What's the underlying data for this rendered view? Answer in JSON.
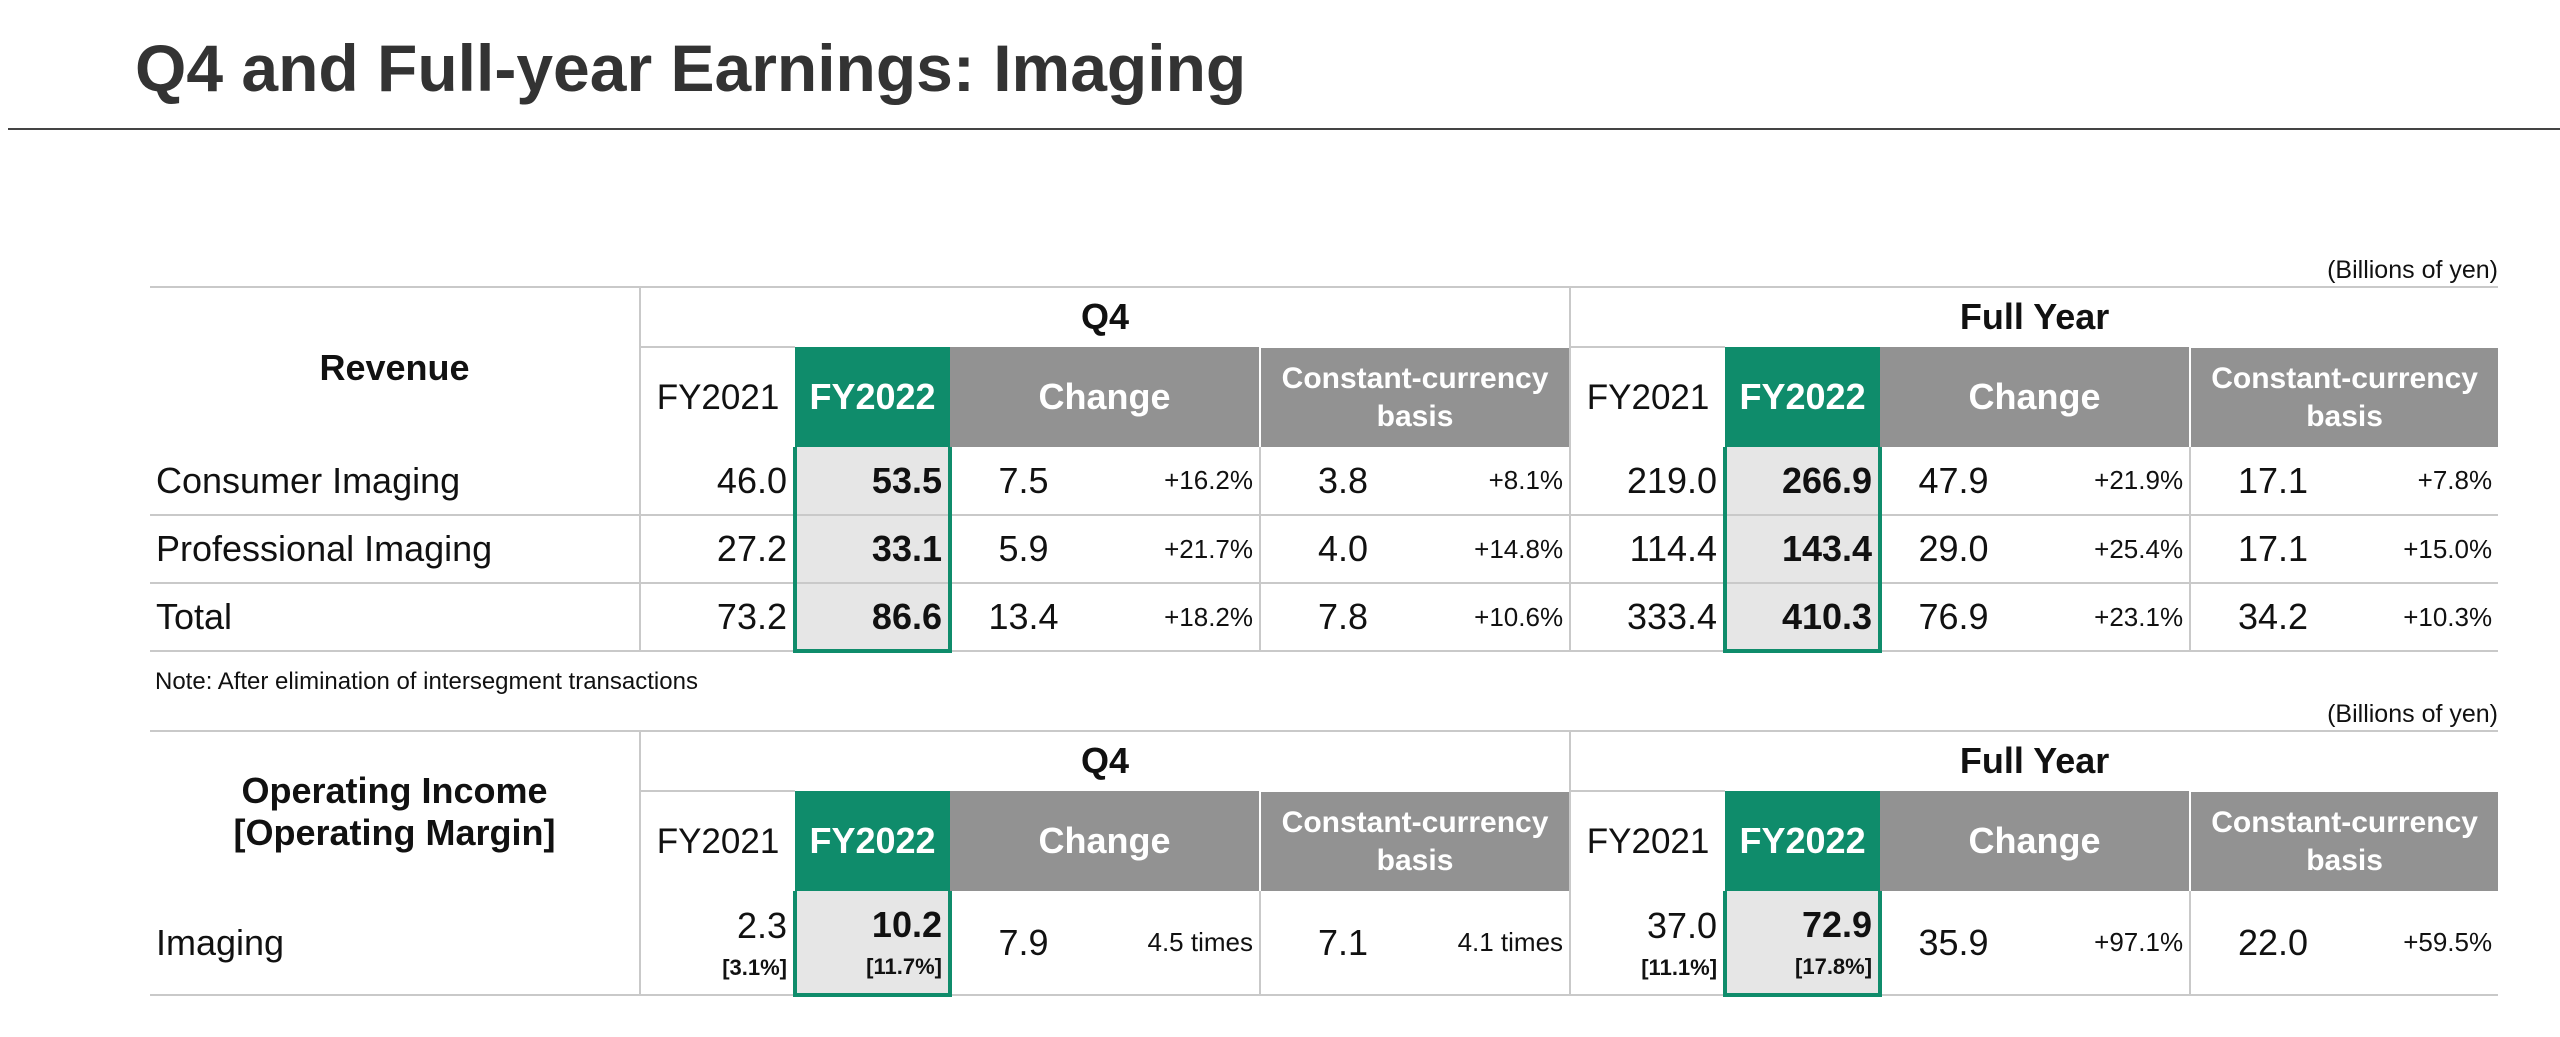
{
  "page": {
    "title": "Q4 and Full-year Earnings: Imaging",
    "unit_label": "(Billions of yen)",
    "note": "Note: After elimination of intersegment transactions"
  },
  "headers": {
    "q4": "Q4",
    "full_year": "Full Year",
    "fy2021": "FY2021",
    "fy2022": "FY2022",
    "change": "Change",
    "constant_currency": "Constant-currency basis"
  },
  "revenue": {
    "title": "Revenue",
    "rows": [
      {
        "label": "Consumer Imaging",
        "q4_fy2021": "46.0",
        "q4_fy2022": "53.5",
        "q4_change": "7.5",
        "q4_change_pct": "+16.2%",
        "q4_cc": "3.8",
        "q4_cc_pct": "+8.1%",
        "fy_fy2021": "219.0",
        "fy_fy2022": "266.9",
        "fy_change": "47.9",
        "fy_change_pct": "+21.9%",
        "fy_cc": "17.1",
        "fy_cc_pct": "+7.8%"
      },
      {
        "label": "Professional Imaging",
        "q4_fy2021": "27.2",
        "q4_fy2022": "33.1",
        "q4_change": "5.9",
        "q4_change_pct": "+21.7%",
        "q4_cc": "4.0",
        "q4_cc_pct": "+14.8%",
        "fy_fy2021": "114.4",
        "fy_fy2022": "143.4",
        "fy_change": "29.0",
        "fy_change_pct": "+25.4%",
        "fy_cc": "17.1",
        "fy_cc_pct": "+15.0%"
      },
      {
        "label": "Total",
        "q4_fy2021": "73.2",
        "q4_fy2022": "86.6",
        "q4_change": "13.4",
        "q4_change_pct": "+18.2%",
        "q4_cc": "7.8",
        "q4_cc_pct": "+10.6%",
        "fy_fy2021": "333.4",
        "fy_fy2022": "410.3",
        "fy_change": "76.9",
        "fy_change_pct": "+23.1%",
        "fy_cc": "34.2",
        "fy_cc_pct": "+10.3%"
      }
    ]
  },
  "operating_income": {
    "title_line1": "Operating Income",
    "title_line2": "[Operating Margin]",
    "rows": [
      {
        "label": "Imaging",
        "q4_fy2021": "2.3",
        "q4_fy2021_margin": "[3.1%]",
        "q4_fy2022": "10.2",
        "q4_fy2022_margin": "[11.7%]",
        "q4_change": "7.9",
        "q4_change_pct": "4.5 times",
        "q4_cc": "7.1",
        "q4_cc_pct": "4.1 times",
        "fy_fy2021": "37.0",
        "fy_fy2021_margin": "[11.1%]",
        "fy_fy2022": "72.9",
        "fy_fy2022_margin": "[17.8%]",
        "fy_change": "35.9",
        "fy_change_pct": "+97.1%",
        "fy_cc": "22.0",
        "fy_cc_pct": "+59.5%"
      }
    ]
  }
}
